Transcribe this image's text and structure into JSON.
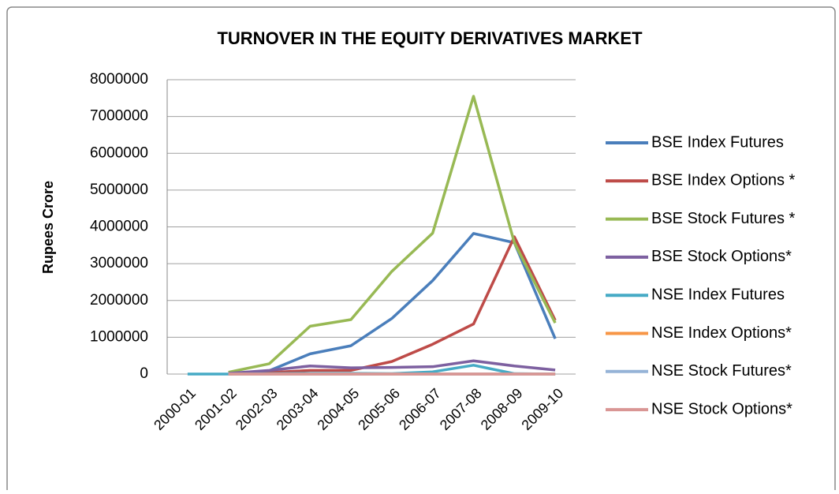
{
  "chart_data": {
    "type": "line",
    "title": "TURNOVER IN THE EQUITY DERIVATIVES MARKET",
    "y_label": "Rupees Crore",
    "categories": [
      "2000-01",
      "2001-02",
      "2002-03",
      "2003-04",
      "2004-05",
      "2005-06",
      "2006-07",
      "2007-08",
      "2008-09",
      "2009-10"
    ],
    "ylim": [
      0,
      8000000
    ],
    "yticks": [
      0,
      1000000,
      2000000,
      3000000,
      4000000,
      5000000,
      6000000,
      7000000,
      8000000
    ],
    "grid": true,
    "legend": "right",
    "series": [
      {
        "name": "BSE Index Futures",
        "color": "#4a7ebb",
        "values": [
          null,
          1000,
          90000,
          550000,
          770000,
          1510000,
          2540000,
          3820000,
          3570000,
          960000
        ]
      },
      {
        "name": "BSE Index Options *",
        "color": "#be4b48",
        "values": [
          null,
          0,
          40000,
          100000,
          100000,
          340000,
          810000,
          1360000,
          3730000,
          1460000
        ]
      },
      {
        "name": "BSE Stock Futures *",
        "color": "#98b954",
        "values": [
          null,
          50000,
          280000,
          1300000,
          1480000,
          2790000,
          3830000,
          7550000,
          3570000,
          1390000
        ]
      },
      {
        "name": "BSE Stock Options*",
        "color": "#7d60a0",
        "values": [
          null,
          20000,
          100000,
          220000,
          170000,
          180000,
          200000,
          360000,
          220000,
          110000
        ]
      },
      {
        "name": "NSE Index Futures",
        "color": "#46aac5",
        "values": [
          0,
          0,
          10000,
          20000,
          20000,
          10000,
          60000,
          240000,
          10000,
          0
        ]
      },
      {
        "name": "NSE Index Options*",
        "color": "#f79646",
        "values": [
          null,
          0,
          0,
          0,
          0,
          0,
          0,
          0,
          0,
          0
        ]
      },
      {
        "name": "NSE Stock Futures*",
        "color": "#95b3d7",
        "values": [
          null,
          0,
          0,
          0,
          0,
          0,
          0,
          0,
          0,
          0
        ]
      },
      {
        "name": "NSE Stock Options*",
        "color": "#d99694",
        "values": [
          null,
          0,
          0,
          0,
          0,
          0,
          0,
          0,
          0,
          0
        ]
      }
    ]
  }
}
